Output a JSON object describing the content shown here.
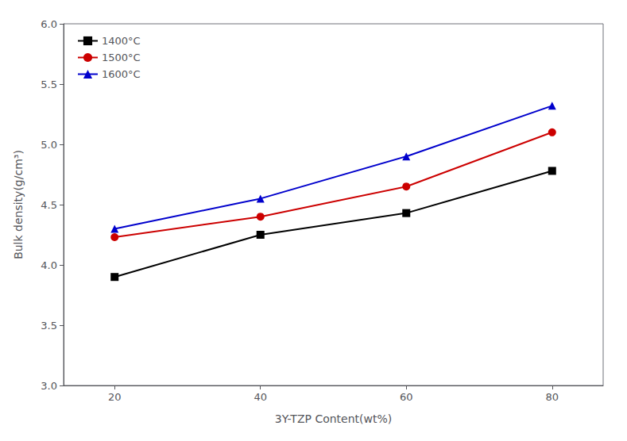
{
  "chart_data": {
    "type": "line",
    "x": [
      20,
      40,
      60,
      80
    ],
    "series": [
      {
        "name": "1400°C",
        "color": "#000000",
        "marker": "square",
        "values": [
          3.9,
          4.25,
          4.43,
          4.78
        ]
      },
      {
        "name": "1500°C",
        "color": "#cc0000",
        "marker": "circle",
        "values": [
          4.23,
          4.4,
          4.65,
          5.1
        ]
      },
      {
        "name": "1600°C",
        "color": "#0000cc",
        "marker": "triangle",
        "values": [
          4.3,
          4.55,
          4.9,
          5.32
        ]
      }
    ],
    "xlabel": "3Y-TZP Content(wt%)",
    "ylabel": "Bulk density(g/cm³)",
    "xlim": [
      13,
      87
    ],
    "ylim": [
      3.0,
      6.0
    ],
    "xticks": [
      20,
      40,
      60,
      80
    ],
    "yticks": [
      {
        "value": 3,
        "label": "3.0"
      },
      3.5,
      {
        "value": 4,
        "label": "4.0"
      },
      4.5,
      {
        "value": 5,
        "label": "5.0"
      },
      5.5,
      {
        "value": 6,
        "label": "6.0"
      }
    ],
    "grid": false,
    "legend": "upper left"
  }
}
